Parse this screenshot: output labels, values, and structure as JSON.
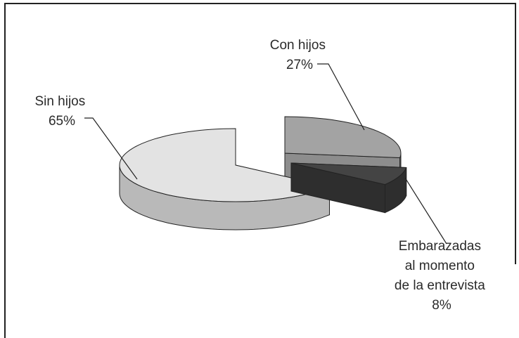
{
  "chart_data": {
    "type": "pie",
    "style": "3d-exploded",
    "title": "",
    "slices": [
      {
        "name": "Sin hijos",
        "value": 65,
        "value_label": "65%",
        "color": "#e3e3e3",
        "side_color": "#b9b9b9"
      },
      {
        "name": "Con hijos",
        "value": 27,
        "value_label": "27%",
        "color": "#a3a3a3",
        "side_color": "#8d8d8d"
      },
      {
        "name": "Embarazadas al momento de la entrevista",
        "value": 8,
        "value_label": "8%",
        "color": "#444444",
        "side_color": "#2e2e2e"
      }
    ],
    "label_lines": {
      "sin_hijos": [
        "Sin hijos",
        "65%"
      ],
      "con_hijos": [
        "Con hijos",
        "27%"
      ],
      "embarazadas": [
        "Embarazadas",
        "al momento",
        "de la entrevista",
        "8%"
      ]
    },
    "legend": "none",
    "grid": false
  }
}
